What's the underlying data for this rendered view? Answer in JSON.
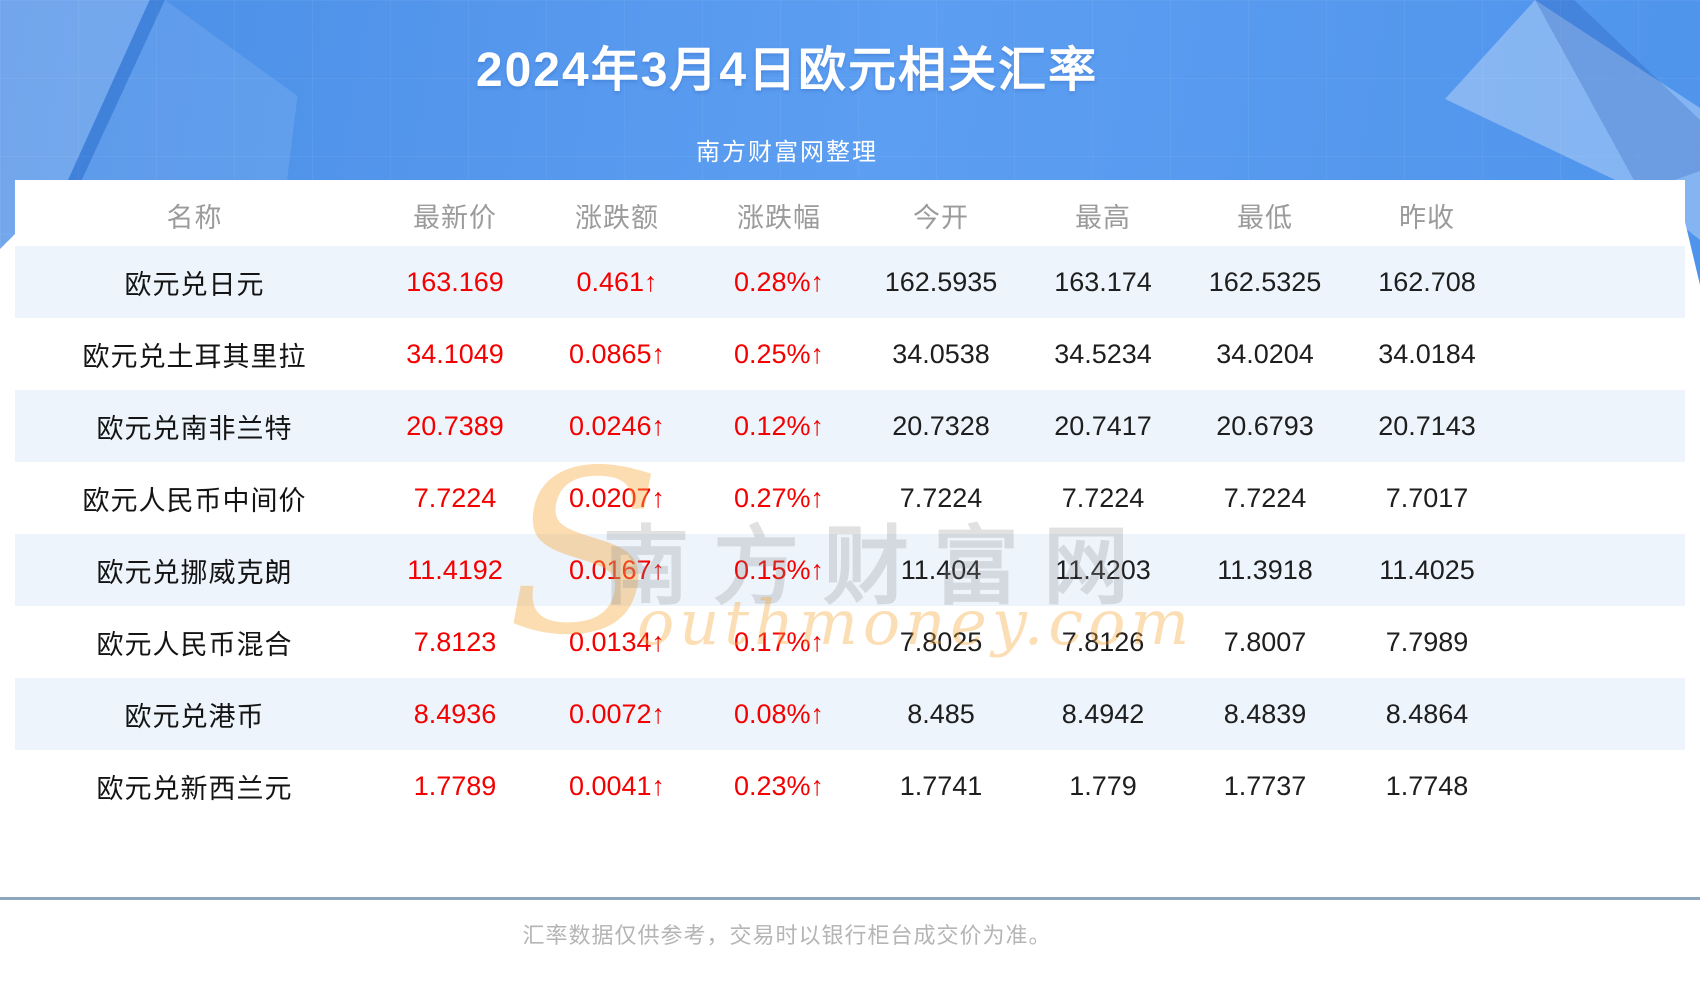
{
  "header": {
    "title": "2024年3月4日欧元相关汇率",
    "subtitle": "南方财富网整理"
  },
  "chart_data": {
    "type": "table",
    "title": "2024年3月4日欧元相关汇率",
    "columns": [
      "名称",
      "最新价",
      "涨跌额",
      "涨跌幅",
      "今开",
      "最高",
      "最低",
      "昨收"
    ],
    "up_arrow": "↑",
    "rows": [
      {
        "name": "欧元兑日元",
        "last": "163.169",
        "change": "0.461",
        "change_pct": "0.28%",
        "direction": "up",
        "open": "162.5935",
        "high": "163.174",
        "low": "162.5325",
        "prev_close": "162.708"
      },
      {
        "name": "欧元兑土耳其里拉",
        "last": "34.1049",
        "change": "0.0865",
        "change_pct": "0.25%",
        "direction": "up",
        "open": "34.0538",
        "high": "34.5234",
        "low": "34.0204",
        "prev_close": "34.0184"
      },
      {
        "name": "欧元兑南非兰特",
        "last": "20.7389",
        "change": "0.0246",
        "change_pct": "0.12%",
        "direction": "up",
        "open": "20.7328",
        "high": "20.7417",
        "low": "20.6793",
        "prev_close": "20.7143"
      },
      {
        "name": "欧元人民币中间价",
        "last": "7.7224",
        "change": "0.0207",
        "change_pct": "0.27%",
        "direction": "up",
        "open": "7.7224",
        "high": "7.7224",
        "low": "7.7224",
        "prev_close": "7.7017"
      },
      {
        "name": "欧元兑挪威克朗",
        "last": "11.4192",
        "change": "0.0167",
        "change_pct": "0.15%",
        "direction": "up",
        "open": "11.404",
        "high": "11.4203",
        "low": "11.3918",
        "prev_close": "11.4025"
      },
      {
        "name": "欧元人民币混合",
        "last": "7.8123",
        "change": "0.0134",
        "change_pct": "0.17%",
        "direction": "up",
        "open": "7.8025",
        "high": "7.8126",
        "low": "7.8007",
        "prev_close": "7.7989"
      },
      {
        "name": "欧元兑港币",
        "last": "8.4936",
        "change": "0.0072",
        "change_pct": "0.08%",
        "direction": "up",
        "open": "8.485",
        "high": "8.4942",
        "low": "8.4839",
        "prev_close": "8.4864"
      },
      {
        "name": "欧元兑新西兰元",
        "last": "1.7789",
        "change": "0.0041",
        "change_pct": "0.23%",
        "direction": "up",
        "open": "1.7741",
        "high": "1.779",
        "low": "1.7737",
        "prev_close": "1.7748"
      }
    ]
  },
  "watermark": {
    "initial": "S",
    "cjk": "南方财富网",
    "latin": "outhmoney.com"
  },
  "footer": {
    "note": "汇率数据仅供参考，交易时以银行柜台成交价为准。"
  },
  "colors": {
    "hero_blue": "#4A8EE7",
    "hero_blue_light": "#5C9EF1",
    "row_alt_blue": "#EDF4FB",
    "up_red": "#F50000",
    "header_text_gray": "#9B9B9B",
    "divider_blue_gray": "#8FA6BE",
    "watermark_orange": "#F7A83C",
    "footer_text_gray": "#B5B5B5"
  }
}
